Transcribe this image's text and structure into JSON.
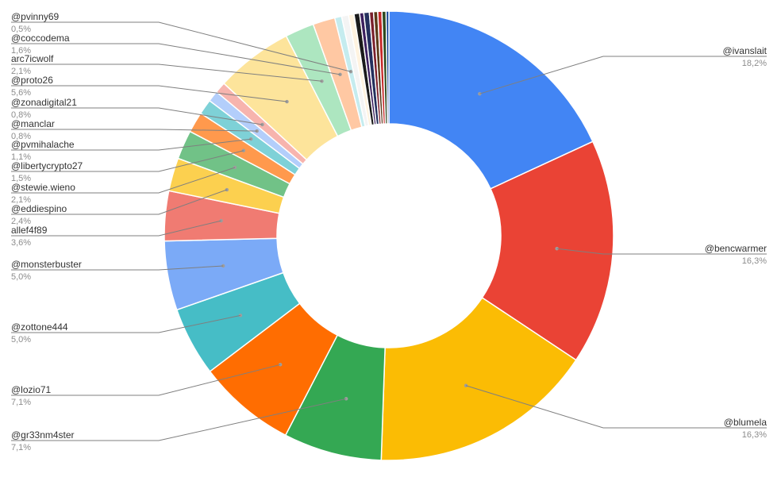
{
  "chart_data": {
    "type": "pie",
    "donut": true,
    "legend": "none",
    "slices": [
      {
        "label": "@ivanslait",
        "value": 18.2,
        "value_label": "18,2%",
        "color": "#4285f4",
        "side": "right"
      },
      {
        "label": "@bencwarmer",
        "value": 16.3,
        "value_label": "16,3%",
        "color": "#ea4335",
        "side": "right"
      },
      {
        "label": "@blumela",
        "value": 16.3,
        "value_label": "16,3%",
        "color": "#fbbc04",
        "side": "right"
      },
      {
        "label": "@gr33nm4ster",
        "value": 7.1,
        "value_label": "7,1%",
        "color": "#34a853",
        "side": "left"
      },
      {
        "label": "@lozio71",
        "value": 7.1,
        "value_label": "7,1%",
        "color": "#ff6d01",
        "side": "left"
      },
      {
        "label": "@zottone444",
        "value": 5.0,
        "value_label": "5,0%",
        "color": "#46bdc6",
        "side": "left"
      },
      {
        "label": "@monsterbuster",
        "value": 5.0,
        "value_label": "5,0%",
        "color": "#7baaf7",
        "side": "left"
      },
      {
        "label": "allef4f89",
        "value": 3.6,
        "value_label": "3,6%",
        "color": "#f07b72",
        "side": "left"
      },
      {
        "label": "@eddiespino",
        "value": 2.4,
        "value_label": "2,4%",
        "color": "#fcd04f",
        "side": "left"
      },
      {
        "label": "@stewie.wieno",
        "value": 2.1,
        "value_label": "2,1%",
        "color": "#71c287",
        "side": "left"
      },
      {
        "label": "@libertycrypto27",
        "value": 1.5,
        "value_label": "1,5%",
        "color": "#ff994d",
        "side": "left"
      },
      {
        "label": "@pvmihalache",
        "value": 1.1,
        "value_label": "1,1%",
        "color": "#7ed1d7",
        "side": "left"
      },
      {
        "label": "@manclar",
        "value": 0.8,
        "value_label": "0,8%",
        "color": "#b3cefb",
        "side": "left"
      },
      {
        "label": "@zonadigital21",
        "value": 0.8,
        "value_label": "0,8%",
        "color": "#f7b4ae",
        "side": "left"
      },
      {
        "label": "@proto26",
        "value": 5.6,
        "value_label": "5,6%",
        "color": "#fde49b",
        "side": "left"
      },
      {
        "label": "arc7icwolf",
        "value": 2.1,
        "value_label": "2,1%",
        "color": "#ade6c0",
        "side": "left"
      },
      {
        "label": "@coccodema",
        "value": 1.6,
        "value_label": "1,6%",
        "color": "#ffc8a3",
        "side": "left"
      },
      {
        "label": "@pvinny69",
        "value": 0.5,
        "value_label": "0,5%",
        "color": "#c5ecef",
        "side": "left"
      },
      {
        "label": "",
        "value": 0.5,
        "value_label": "",
        "color": "#f4f4f4",
        "side": "none"
      },
      {
        "label": "",
        "value": 0.4,
        "value_label": "",
        "color": "#fff3e0",
        "side": "none"
      },
      {
        "label": "",
        "value": 0.4,
        "value_label": "",
        "color": "#1a1a1a",
        "side": "none"
      },
      {
        "label": "",
        "value": 0.3,
        "value_label": "",
        "color": "#3c1f5e",
        "side": "none"
      },
      {
        "label": "",
        "value": 0.4,
        "value_label": "",
        "color": "#24305e",
        "side": "none"
      },
      {
        "label": "",
        "value": 0.3,
        "value_label": "",
        "color": "#7a1f2b",
        "side": "none"
      },
      {
        "label": "",
        "value": 0.3,
        "value_label": "",
        "color": "#5a3a1a",
        "side": "none"
      },
      {
        "label": "",
        "value": 0.3,
        "value_label": "",
        "color": "#c62828",
        "side": "none"
      },
      {
        "label": "",
        "value": 0.3,
        "value_label": "",
        "color": "#2e4a1f",
        "side": "none"
      },
      {
        "label": "",
        "value": 0.2,
        "value_label": "",
        "color": "#0b3d91",
        "side": "none"
      }
    ]
  }
}
